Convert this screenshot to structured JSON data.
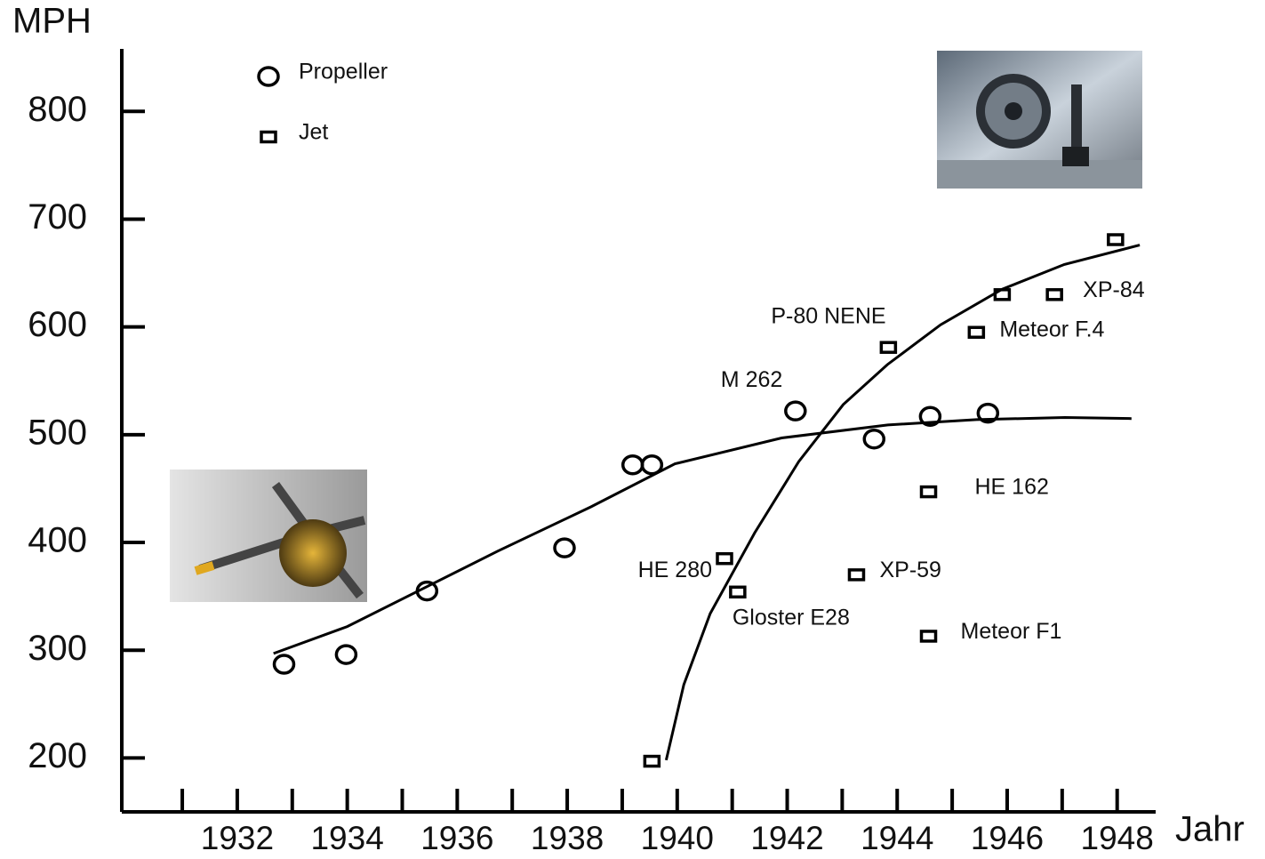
{
  "chart_data": {
    "type": "scatter",
    "y_axis_title": "MPH",
    "x_axis_title": "Jahr",
    "xlim": [
      1929.9,
      1948.7
    ],
    "ylim": [
      150,
      858
    ],
    "xticks": [
      1932,
      1934,
      1936,
      1938,
      1940,
      1942,
      1944,
      1946,
      1948
    ],
    "xminor_ticks": [
      1931,
      1933,
      1935,
      1937,
      1939,
      1941,
      1943,
      1945,
      1947
    ],
    "yticks": [
      200,
      300,
      400,
      500,
      600,
      700,
      800
    ],
    "legend": "top-left",
    "series": [
      {
        "name": "Propeller",
        "marker": "circle",
        "color": "#000000",
        "x": [
          1932.85,
          1933.98,
          1935.45,
          1937.95,
          1939.19,
          1939.54,
          1942.15,
          1943.58,
          1944.6,
          1945.65
        ],
        "values": [
          287,
          296,
          355,
          395,
          472,
          472,
          522,
          496,
          517,
          520
        ],
        "point_labels": [
          null,
          null,
          null,
          null,
          null,
          null,
          "M 262",
          null,
          null,
          null
        ]
      },
      {
        "name": "Jet",
        "marker": "square",
        "color": "#000000",
        "x": [
          1939.54,
          1940.86,
          1941.1,
          1943.26,
          1943.84,
          1944.57,
          1944.57,
          1945.44,
          1945.91,
          1946.86,
          1947.97
        ],
        "values": [
          197,
          385,
          354,
          370,
          581,
          447,
          313,
          595,
          630,
          630,
          681
        ],
        "point_labels": [
          null,
          "HE 280",
          "Gloster E28",
          "XP-59",
          "P-80 NENE",
          "HE 162",
          "Meteor F1",
          "Meteor F.4",
          null,
          "XP-84",
          null
        ]
      }
    ],
    "trend_lines": [
      {
        "x": [
          1932.66,
          1934,
          1935.45,
          1936.74,
          1938.43,
          1939.96,
          1941.9,
          1943.83,
          1945.44,
          1947.05,
          1948.26
        ],
        "values": [
          297,
          322,
          359,
          392,
          433,
          473,
          497,
          509,
          514,
          516,
          515
        ]
      },
      {
        "x": [
          1939.8,
          1940.12,
          1940.6,
          1941.41,
          1942.21,
          1943.02,
          1943.82,
          1944.79,
          1945.91,
          1947.04,
          1948.41
        ],
        "values": [
          198,
          268,
          334,
          409,
          475,
          528,
          565,
          602,
          635,
          658,
          676
        ]
      }
    ]
  }
}
